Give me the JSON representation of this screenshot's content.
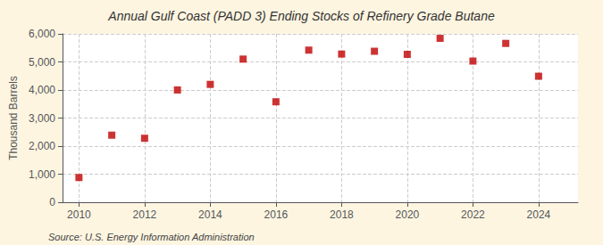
{
  "chart_data": {
    "type": "scatter",
    "title": "Annual Gulf Coast (PADD 3) Ending Stocks of Refinery Grade Butane",
    "ylabel": "Thousand Barrels",
    "source": "Source: U.S. Energy Information Administration",
    "x": [
      2010,
      2011,
      2012,
      2013,
      2014,
      2015,
      2016,
      2017,
      2018,
      2019,
      2020,
      2021,
      2022,
      2023,
      2024
    ],
    "values": [
      880,
      2390,
      2280,
      4000,
      4200,
      5100,
      3580,
      5420,
      5280,
      5380,
      5270,
      5840,
      5030,
      5660,
      4490
    ],
    "color": "#c00000",
    "marker": "square",
    "xlim": [
      2009.5,
      2025.2
    ],
    "xticks": [
      2010,
      2012,
      2014,
      2016,
      2018,
      2020,
      2022,
      2024
    ],
    "ylim": [
      0,
      6000
    ],
    "yticks": [
      0,
      {
        "value": 1000,
        "label": "1,000"
      },
      {
        "value": 2000,
        "label": "2,000"
      },
      {
        "value": 3000,
        "label": "3,000"
      },
      {
        "value": 4000,
        "label": "4,000"
      },
      {
        "value": 5000,
        "label": "5,000"
      },
      {
        "value": 6000,
        "label": "6,000"
      }
    ],
    "grid": true
  }
}
